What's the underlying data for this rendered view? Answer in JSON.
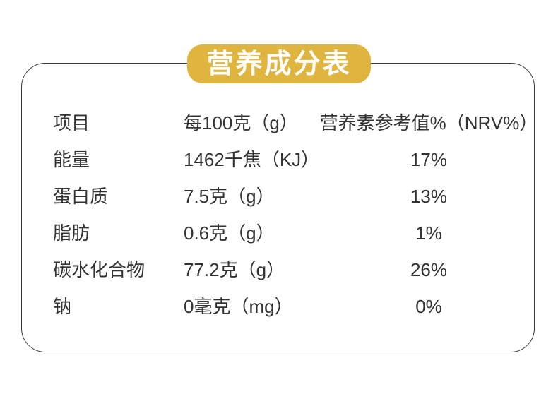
{
  "title": "营养成分表",
  "colors": {
    "accent_gold": "#dfb53f",
    "text": "#333333",
    "border": "#3a3a3a",
    "background": "#ffffff"
  },
  "table": {
    "headers": {
      "item": "项目",
      "amount": "每100克（g）",
      "nrv": "营养素参考值%（NRV%）"
    },
    "rows": [
      {
        "item": "能量",
        "amount": "1462千焦（KJ）",
        "nrv": "17%"
      },
      {
        "item": "蛋白质",
        "amount": "7.5克（g）",
        "nrv": "13%"
      },
      {
        "item": "脂肪",
        "amount": "0.6克（g）",
        "nrv": "1%"
      },
      {
        "item": "碳水化合物",
        "amount": "77.2克（g）",
        "nrv": "26%"
      },
      {
        "item": "钠",
        "amount": "0毫克（mg）",
        "nrv": "0%"
      }
    ]
  }
}
